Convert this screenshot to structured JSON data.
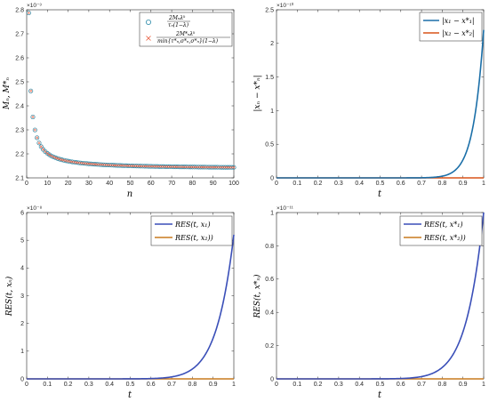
{
  "chart_data": [
    {
      "type": "scatter",
      "xlabel": "n",
      "ylabel": "M_n, M*_n",
      "exponent": "×10⁻³",
      "xlim": [
        0,
        100
      ],
      "ylim": [
        2.1,
        2.8
      ],
      "xticks": [
        0,
        10,
        20,
        30,
        40,
        50,
        60,
        70,
        80,
        90,
        100
      ],
      "yticks": [
        2.1,
        2.2,
        2.3,
        2.4,
        2.5,
        2.6,
        2.7,
        2.8
      ],
      "legend_position": "top-right",
      "series": [
        {
          "name": "2M_n λ^k / τ_n(1−λ)",
          "marker": "circle",
          "color": "#2a8aa8",
          "model": {
            "kind": "decay",
            "a": 2.137,
            "b": 0.65,
            "start": 1,
            "end": 100,
            "step": 1
          }
        },
        {
          "name": "2M*_n λ^k / min{τ*_n, σ*_n, σ*_n}(1−λ)",
          "marker": "cross",
          "color": "#e8593a",
          "model": {
            "kind": "decay",
            "a": 2.137,
            "b": 0.65,
            "start": 1,
            "end": 100,
            "step": 1
          }
        }
      ],
      "sample_values": {
        "n": [
          1,
          5,
          10,
          20,
          30,
          50,
          100
        ],
        "M_n": [
          2.787,
          2.267,
          2.202,
          2.17,
          2.159,
          2.15,
          2.144
        ]
      }
    },
    {
      "type": "line",
      "xlabel": "t",
      "ylabel": "|x_n − x*_n|",
      "exponent": "×10⁻¹⁰",
      "xlim": [
        0,
        1
      ],
      "ylim": [
        0,
        2.5
      ],
      "xticks": [
        0,
        0.1,
        0.2,
        0.3,
        0.4,
        0.5,
        0.6,
        0.7,
        0.8,
        0.9,
        1
      ],
      "yticks": [
        0,
        0.5,
        1,
        1.5,
        2,
        2.5
      ],
      "legend_position": "top-right",
      "series": [
        {
          "name": "|x_1 − x*_1|",
          "color": "#1b6fa8",
          "model": {
            "kind": "power",
            "amp": 2.2,
            "p": 20
          }
        },
        {
          "name": "|x_2 − x*_2|",
          "color": "#d95319",
          "model": {
            "kind": "zero"
          }
        }
      ]
    },
    {
      "type": "line",
      "xlabel": "t",
      "ylabel": "RES(t, x_n)",
      "exponent": "×10⁻⁸",
      "xlim": [
        0,
        1
      ],
      "ylim": [
        0,
        6
      ],
      "xticks": [
        0,
        0.1,
        0.2,
        0.3,
        0.4,
        0.5,
        0.6,
        0.7,
        0.8,
        0.9,
        1
      ],
      "yticks": [
        0,
        1,
        2,
        3,
        4,
        5,
        6
      ],
      "legend_position": "top-right",
      "series": [
        {
          "name": "RES(t, x_1)",
          "color": "#3a4fb8",
          "model": {
            "kind": "power",
            "amp": 5.2,
            "p": 12
          }
        },
        {
          "name": "RES(t, x_2)",
          "color": "#c87a1e",
          "model": {
            "kind": "zero"
          }
        }
      ]
    },
    {
      "type": "line",
      "xlabel": "t",
      "ylabel": "RES(t, x*_n)",
      "exponent": "×10⁻¹¹",
      "xlim": [
        0,
        1
      ],
      "ylim": [
        0,
        1
      ],
      "xticks": [
        0,
        0.1,
        0.2,
        0.3,
        0.4,
        0.5,
        0.6,
        0.7,
        0.8,
        0.9,
        1
      ],
      "yticks": [
        0,
        0.2,
        0.4,
        0.6,
        0.8,
        1
      ],
      "legend_position": "top-right",
      "series": [
        {
          "name": "RES(t, x*_1)",
          "color": "#3a4fb8",
          "model": {
            "kind": "power",
            "amp": 1.0,
            "p": 12
          }
        },
        {
          "name": "RES(t, x*_2)",
          "color": "#c87a1e",
          "model": {
            "kind": "zero"
          }
        }
      ]
    }
  ],
  "panel_labels": {
    "tl": {
      "xlabel": "n",
      "exp": "×10⁻³",
      "leg1_big": "2Mₙλᵏ",
      "leg1_small": "τₙ(1−λ)",
      "leg2_big": "2M*ₙλᵏ",
      "leg2_small": "min{τ*ₙ,σ*ₙ,σ*ₙ}(1−λ)",
      "ylab": "Mₙ, M*ₙ"
    },
    "tr": {
      "xlabel": "t",
      "exp": "×10⁻¹⁰",
      "leg1": "|x₁ − x*₁|",
      "leg2": "|x₂ − x*₂|",
      "ylab": "|xₙ − x*ₙ|"
    },
    "bl": {
      "xlabel": "t",
      "exp": "×10⁻⁸",
      "leg1": "RES(t, x₁)",
      "leg2": "RES(t, x₂))",
      "ylab": "RES(t, xₙ)"
    },
    "br": {
      "xlabel": "t",
      "exp": "×10⁻¹¹",
      "leg1": "RES(t, x*₁)",
      "leg2": "RES(t, x*₂))",
      "ylab": "RES(t, x*ₙ)"
    }
  }
}
